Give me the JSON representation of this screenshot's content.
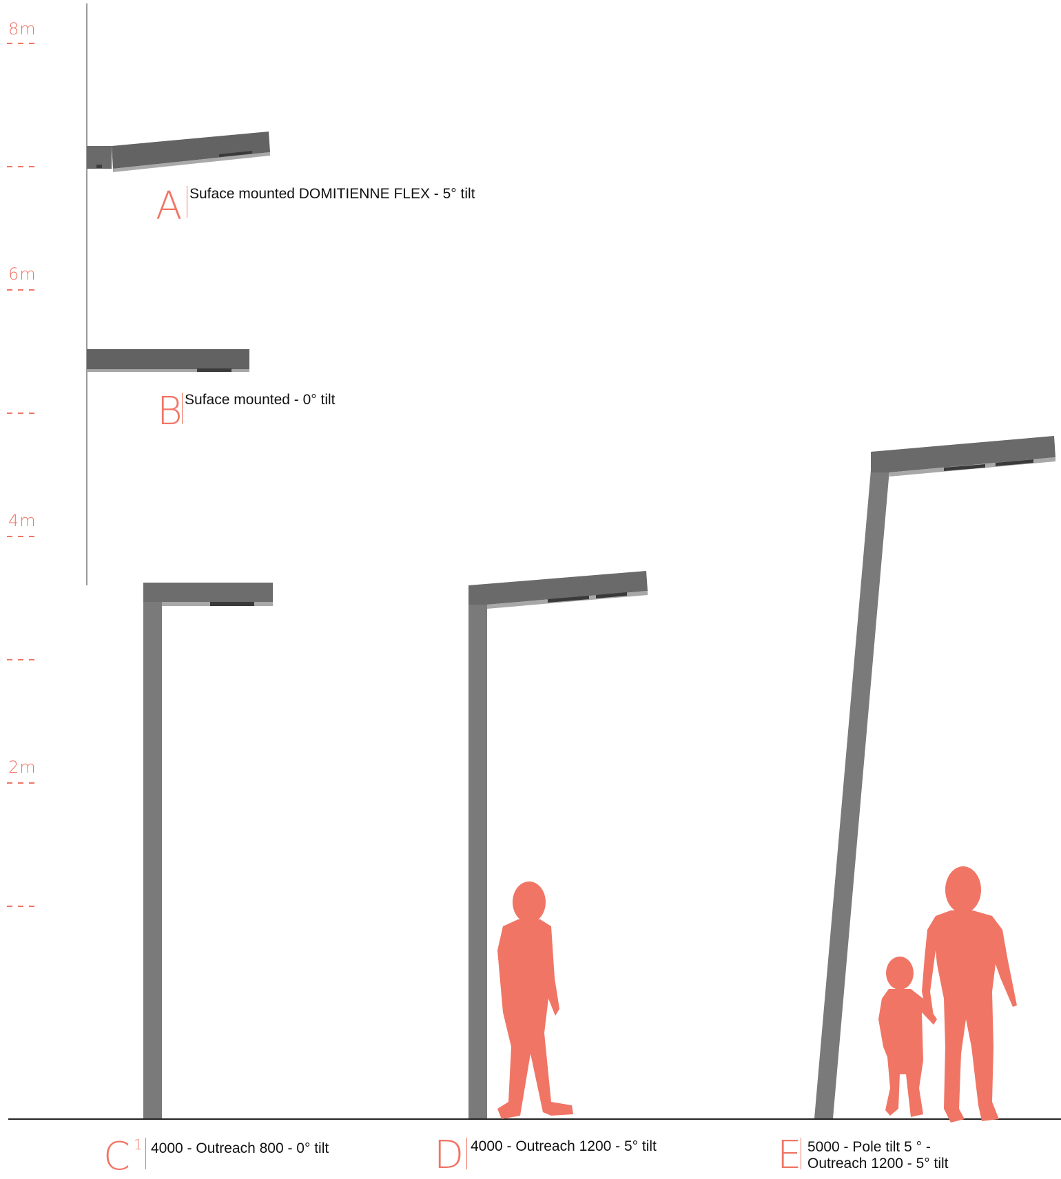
{
  "scale": {
    "labels": [
      "8m",
      "6m",
      "4m",
      "2m"
    ]
  },
  "fixtures": {
    "a": {
      "letter": "A",
      "caption": "Suface mounted DOMITIENNE FLEX - 5° tilt"
    },
    "b": {
      "letter": "B",
      "caption": "Suface mounted - 0° tilt"
    },
    "c": {
      "letter": "C",
      "superscript": "1",
      "caption": "4000 - Outreach 800 - 0° tilt"
    },
    "d": {
      "letter": "D",
      "caption": "4000 - Outreach 1200 - 5° tilt"
    },
    "e": {
      "letter": "E",
      "caption": "5000 - Pole tilt 5 ° - Outreach 1200 - 5° tilt"
    }
  },
  "colors": {
    "accent": "#f07565",
    "pole": "#7a7a7a",
    "luminaire": "#6b6b6b",
    "ground": "#222222"
  },
  "icons": {
    "silhouette_d": "walking-child-silhouette-icon",
    "silhouette_e_adult": "adult-silhouette-icon",
    "silhouette_e_child": "small-child-silhouette-icon"
  }
}
